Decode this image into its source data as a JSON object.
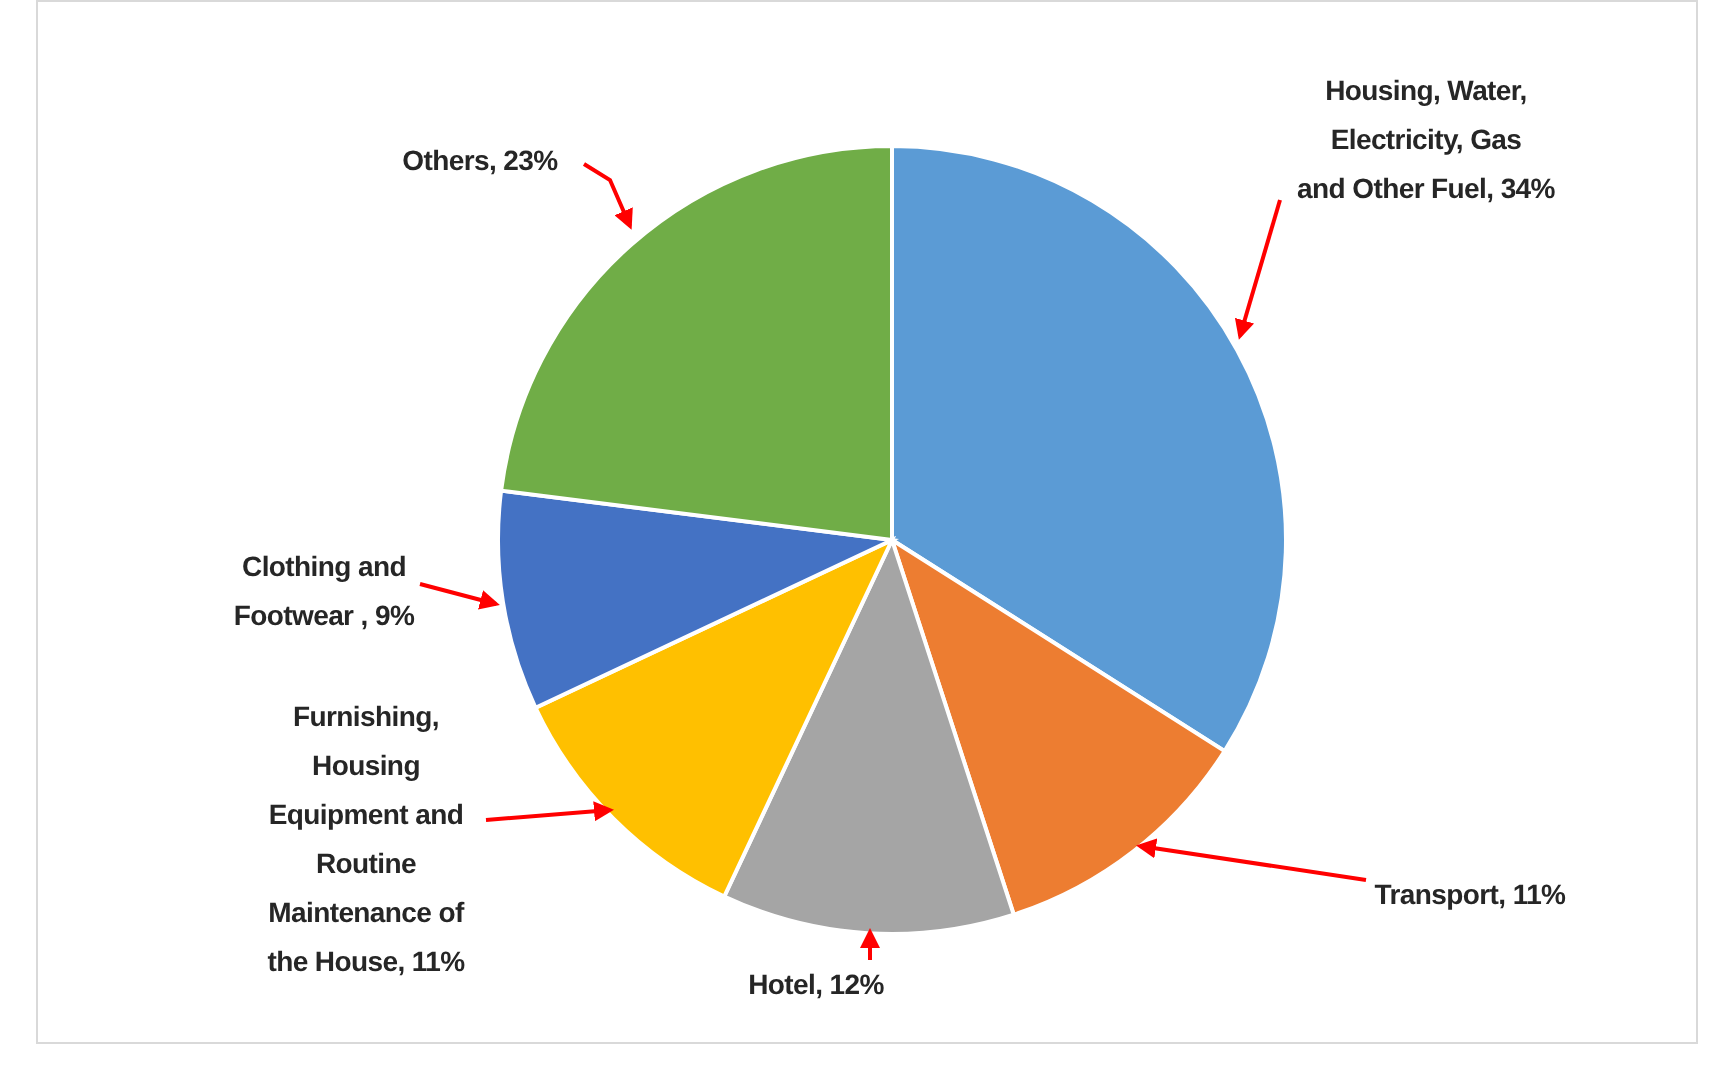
{
  "chart_data": {
    "type": "pie",
    "categories": [
      "Housing, Water, Electricity, Gas and Other Fuel ",
      "Transport",
      "Hotel",
      "Furnishing, Housing Equipment and Routine Maintenance of the House",
      "Clothing and Footwear ",
      "Others"
    ],
    "values": [
      34,
      11,
      12,
      11,
      9,
      23
    ],
    "colors": [
      "#5b9bd5",
      "#ed7d31",
      "#a5a5a5",
      "#ffc000",
      "#4472c4",
      "#70ad47"
    ],
    "value_labels": [
      ", 34%",
      ", 11%",
      ", 12%",
      ", 11%",
      ", 9%",
      ", 23%"
    ]
  }
}
